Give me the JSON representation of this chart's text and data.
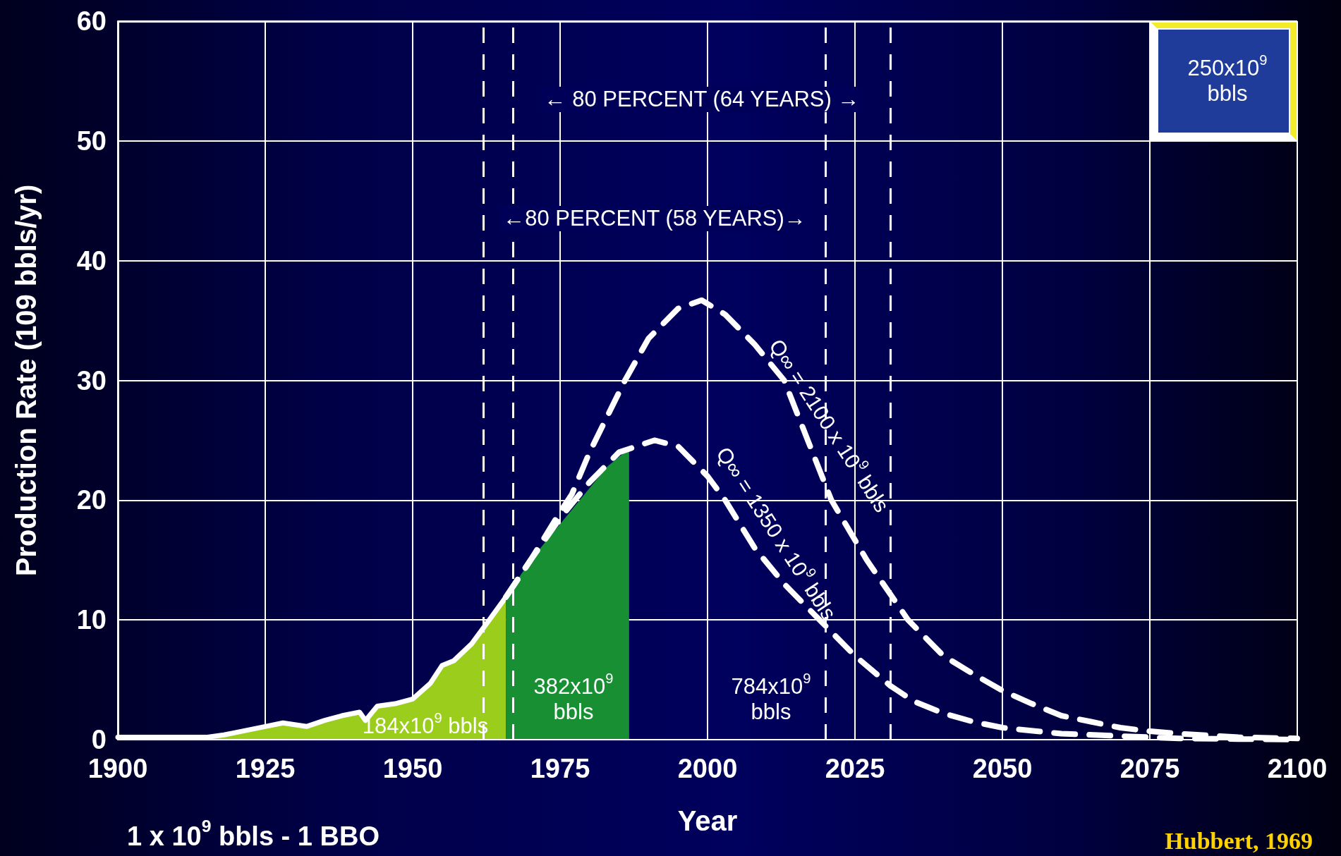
{
  "chart_data": {
    "type": "area",
    "xlabel": "Year",
    "ylabel": "Production Rate (109 bbls/yr)",
    "xlim": [
      1900,
      2100
    ],
    "xticks": [
      1900,
      1925,
      1950,
      1975,
      2000,
      2025,
      2050,
      2075,
      2100
    ],
    "ylim": [
      0,
      60
    ],
    "yticks": [
      0,
      10,
      20,
      30,
      40,
      50,
      60
    ],
    "grid": true,
    "legend": false,
    "marker": "none",
    "series": [
      {
        "color": "#9acd1c",
        "x": [
          1900,
          1905,
          1910,
          1915,
          1918,
          1920,
          1925,
          1928,
          1932,
          1935,
          1938,
          1941,
          1942,
          1944,
          1947,
          1950,
          1953,
          1955,
          1957,
          1960,
          1963,
          1965.8
        ],
        "values": [
          0.2,
          0.2,
          0.2,
          0.2,
          0.4,
          0.6,
          1.1,
          1.4,
          1.1,
          1.6,
          2.0,
          2.3,
          1.6,
          2.8,
          3.0,
          3.4,
          4.7,
          6.2,
          6.6,
          8.0,
          10.0,
          11.9
        ]
      },
      {
        "color": "#178f32",
        "x": [
          1965.8,
          1970,
          1975,
          1980,
          1983,
          1986.7
        ],
        "values": [
          11.9,
          15.0,
          18.0,
          21.0,
          22.8,
          24.3
        ]
      },
      {
        "type": "line",
        "name": "Q∞ = 2100 x 10$^{9}$ bbls",
        "color": "#ffffff",
        "line_style": "dashed",
        "x": [
          1965.8,
          1970,
          1975,
          1977,
          1980,
          1986,
          1990,
          1995,
          1999,
          2003,
          2008,
          2013,
          2017,
          2021,
          2027,
          2034,
          2040,
          2045,
          2050,
          2055,
          2060,
          2065,
          2070,
          2075,
          2080,
          2090,
          2100
        ],
        "values": [
          11.9,
          15.0,
          19.0,
          20.5,
          24.0,
          30.0,
          33.5,
          36.0,
          36.7,
          35.5,
          33.0,
          30.0,
          25.0,
          20.0,
          15.0,
          10.0,
          7.0,
          5.5,
          4.1,
          3.0,
          2.0,
          1.5,
          1.0,
          0.7,
          0.5,
          0.2,
          0.1
        ]
      },
      {
        "type": "line",
        "name": "Q∞ = 1350 x 10$^{9}$ bbls",
        "color": "#ffffff",
        "line_style": "dashed",
        "x": [
          1965.8,
          1970,
          1975,
          1980,
          1985,
          1991,
          1995,
          2000,
          2003,
          2008,
          2013,
          2019,
          2025,
          2031,
          2035,
          2040,
          2045,
          2050,
          2060,
          2070,
          2080,
          2090,
          2100
        ],
        "values": [
          11.9,
          15.0,
          18.5,
          21.5,
          24.0,
          25.0,
          24.5,
          22.0,
          20.0,
          16.0,
          13.0,
          10.0,
          7.0,
          4.5,
          3.2,
          2.2,
          1.5,
          1.0,
          0.5,
          0.3,
          0.1,
          0.05,
          0.0
        ]
      }
    ],
    "ref_lines": [
      {
        "axis": "x",
        "value": 1962,
        "color": "#ffffff",
        "line_style": "dashed"
      },
      {
        "axis": "x",
        "value": 1967,
        "color": "#ffffff",
        "line_style": "dashed"
      },
      {
        "axis": "x",
        "value": 2020,
        "color": "#ffffff",
        "line_style": "dashed"
      },
      {
        "axis": "x",
        "value": 2031,
        "color": "#ffffff",
        "line_style": "dashed"
      }
    ],
    "annotations": [
      "← 80 PERCENT (64  YEARS) →",
      "←80 PERCENT (58  YEARS)→",
      "184x10$^{9}$ bbls",
      "382x10$^{9}$ bbls",
      "784x10$^{9}$ bbls",
      "250x10$^{9}$ bbls",
      "1 x 10$^{9}$ bbls - 1 BBO",
      "Hubbert, 1969"
    ]
  }
}
